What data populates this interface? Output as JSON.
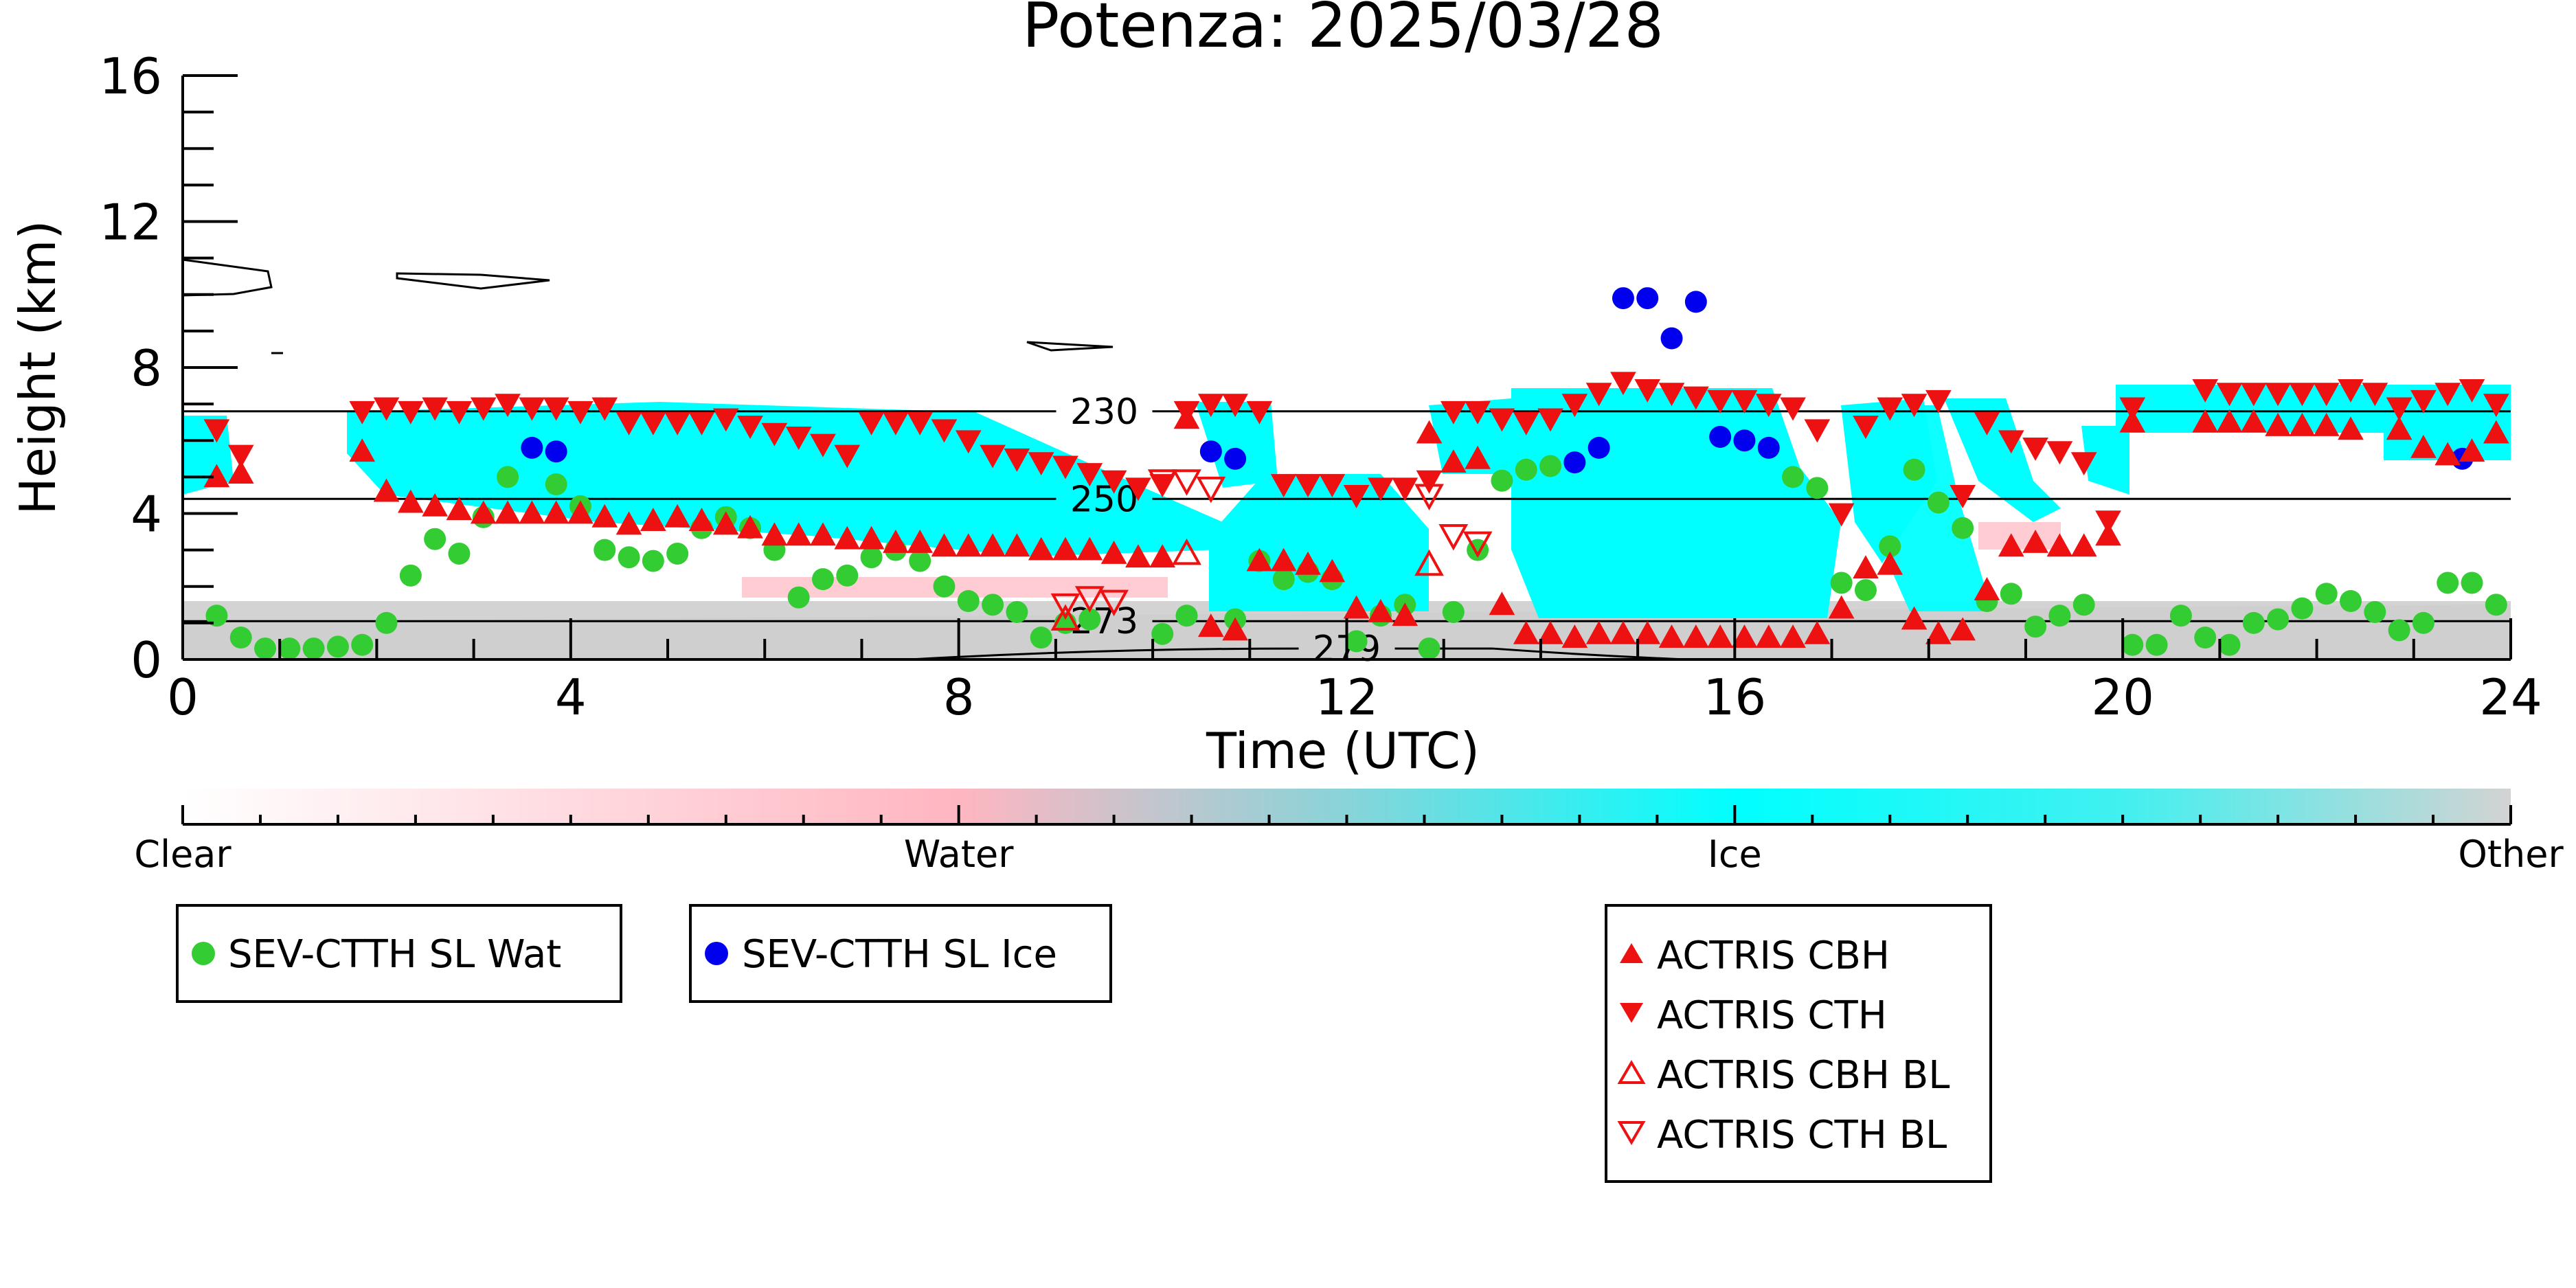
{
  "chart_data": {
    "type": "scatter",
    "title": "Potenza: 2025/03/28",
    "xlabel": "Time (UTC)",
    "ylabel": "Height (km)",
    "xlim": [
      0,
      24
    ],
    "ylim": [
      0,
      16
    ],
    "xticks": [
      0,
      4,
      8,
      12,
      16,
      20,
      24
    ],
    "yticks": [
      0,
      4,
      8,
      12,
      16
    ],
    "xtick_labels": [
      "0",
      "4",
      "8",
      "12",
      "16",
      "20",
      "24"
    ],
    "ytick_labels": [
      "0",
      "4",
      "8",
      "12",
      "16"
    ],
    "grid": false,
    "colorbar": {
      "labels": [
        "Clear",
        "Water",
        "Ice",
        "Other"
      ],
      "colors": [
        "#ffffff",
        "#ffb6c1",
        "#00ffff",
        "#d3d3d3"
      ]
    },
    "contours": [
      {
        "label": "230",
        "height": 6.8,
        "label_x": 9.5
      },
      {
        "label": "250",
        "height": 4.4,
        "label_x": 9.5
      },
      {
        "label": "273",
        "height": 1.05,
        "label_x": 9.5
      },
      {
        "label": "279",
        "height": 0.3,
        "label_x": 12.0
      }
    ],
    "series": [
      {
        "name": "SEV-CTTH SL Wat",
        "color": "#33cc33",
        "marker": "circle",
        "x": [
          0.35,
          0.6,
          0.85,
          1.1,
          1.35,
          1.6,
          1.85,
          2.1,
          2.35,
          2.6,
          2.85,
          3.1,
          3.35,
          3.85,
          4.1,
          4.35,
          4.6,
          4.85,
          5.1,
          5.35,
          5.6,
          5.85,
          6.1,
          6.35,
          6.6,
          6.85,
          7.1,
          7.35,
          7.6,
          7.85,
          8.1,
          8.35,
          8.6,
          8.85,
          9.1,
          9.35,
          10.1,
          10.35,
          10.85,
          11.1,
          11.35,
          11.6,
          11.85,
          12.1,
          12.35,
          12.6,
          12.85,
          13.1,
          13.35,
          13.6,
          13.85,
          14.1,
          16.6,
          16.85,
          17.1,
          17.35,
          17.6,
          17.85,
          18.1,
          18.35,
          18.6,
          18.85,
          19.1,
          19.35,
          19.6,
          20.1,
          20.35,
          20.6,
          20.85,
          21.1,
          21.35,
          21.6,
          21.85,
          22.1,
          22.35,
          22.6,
          22.85,
          23.1,
          23.35,
          23.6,
          23.85
        ],
        "y": [
          1.2,
          0.6,
          0.3,
          0.3,
          0.3,
          0.35,
          0.4,
          1.0,
          2.3,
          3.3,
          2.9,
          3.9,
          5.0,
          4.8,
          4.2,
          3.0,
          2.8,
          2.7,
          2.9,
          3.6,
          3.9,
          3.6,
          3.0,
          1.7,
          2.2,
          2.3,
          2.8,
          3.0,
          2.7,
          2.0,
          1.6,
          1.5,
          1.3,
          0.6,
          1.0,
          1.1,
          0.7,
          1.2,
          1.1,
          2.7,
          2.2,
          2.4,
          2.2,
          0.5,
          1.2,
          1.5,
          0.3,
          1.3,
          3.0,
          4.9,
          5.2,
          5.3,
          5.0,
          4.7,
          2.1,
          1.9,
          3.1,
          5.2,
          4.3,
          3.6,
          1.6,
          1.8,
          0.9,
          1.2,
          1.5,
          0.4,
          0.4,
          1.2,
          0.6,
          0.4,
          1.0,
          1.1,
          1.4,
          1.8,
          1.6,
          1.3,
          0.8,
          1.0,
          2.1,
          2.1,
          1.5
        ]
      },
      {
        "name": "SEV-CTTH SL Ice",
        "color": "#0000ee",
        "marker": "circle",
        "x": [
          3.6,
          3.85,
          10.6,
          10.85,
          14.35,
          14.6,
          14.85,
          15.1,
          15.35,
          15.6,
          15.85,
          16.1,
          16.35,
          23.5
        ],
        "y": [
          5.8,
          5.7,
          5.7,
          5.5,
          5.4,
          5.8,
          9.9,
          9.9,
          8.8,
          9.8,
          6.1,
          6.0,
          5.8,
          5.5
        ]
      },
      {
        "name": "ACTRIS CBH",
        "color": "#ee1111",
        "marker": "triangle-up",
        "x": [
          0.35,
          0.6,
          1.85,
          2.1,
          2.35,
          2.6,
          2.85,
          3.1,
          3.35,
          3.6,
          3.85,
          4.1,
          4.35,
          4.6,
          4.85,
          5.1,
          5.35,
          5.6,
          5.85,
          6.1,
          6.35,
          6.6,
          6.85,
          7.1,
          7.35,
          7.6,
          7.85,
          8.1,
          8.35,
          8.6,
          8.85,
          9.1,
          9.35,
          9.6,
          9.85,
          10.1,
          10.35,
          10.6,
          10.85,
          11.1,
          11.35,
          11.6,
          11.85,
          12.1,
          12.35,
          12.6,
          12.85,
          13.1,
          13.35,
          13.6,
          13.85,
          14.1,
          14.35,
          14.6,
          14.85,
          15.1,
          15.35,
          15.6,
          15.85,
          16.1,
          16.35,
          16.6,
          16.85,
          17.1,
          17.35,
          17.6,
          17.85,
          18.1,
          18.35,
          18.6,
          18.85,
          19.1,
          19.35,
          19.6,
          19.85,
          20.1,
          20.85,
          21.1,
          21.35,
          21.6,
          21.85,
          22.1,
          22.35,
          22.85,
          23.1,
          23.35,
          23.6,
          23.85
        ],
        "y": [
          5.0,
          5.1,
          5.7,
          4.6,
          4.3,
          4.2,
          4.1,
          4.0,
          4.0,
          4.0,
          4.0,
          4.0,
          3.9,
          3.7,
          3.8,
          3.9,
          3.8,
          3.7,
          3.6,
          3.4,
          3.4,
          3.4,
          3.3,
          3.3,
          3.2,
          3.2,
          3.1,
          3.1,
          3.1,
          3.1,
          3.0,
          3.0,
          3.0,
          2.9,
          2.8,
          2.8,
          6.6,
          0.9,
          0.8,
          2.7,
          2.7,
          2.6,
          2.4,
          1.4,
          1.3,
          1.2,
          6.2,
          5.4,
          5.5,
          1.5,
          0.7,
          0.7,
          0.6,
          0.7,
          0.7,
          0.7,
          0.6,
          0.6,
          0.6,
          0.6,
          0.6,
          0.6,
          0.7,
          1.4,
          2.5,
          2.6,
          1.1,
          0.7,
          0.8,
          1.9,
          3.1,
          3.2,
          3.1,
          3.1,
          3.4,
          6.5,
          6.5,
          6.5,
          6.5,
          6.4,
          6.4,
          6.4,
          6.3,
          6.3,
          5.8,
          5.6,
          5.7,
          6.2
        ]
      },
      {
        "name": "ACTRIS CTH",
        "color": "#ee1111",
        "marker": "triangle-down",
        "x": [
          0.35,
          0.6,
          1.85,
          2.1,
          2.35,
          2.6,
          2.85,
          3.1,
          3.35,
          3.6,
          3.85,
          4.1,
          4.35,
          4.6,
          4.85,
          5.1,
          5.35,
          5.6,
          5.85,
          6.1,
          6.35,
          6.6,
          6.85,
          7.1,
          7.35,
          7.6,
          7.85,
          8.1,
          8.35,
          8.6,
          8.85,
          9.1,
          9.35,
          9.6,
          9.85,
          10.1,
          10.35,
          10.6,
          10.85,
          11.1,
          11.35,
          11.6,
          11.85,
          12.1,
          12.35,
          12.6,
          12.85,
          13.1,
          13.35,
          13.6,
          13.85,
          14.1,
          14.35,
          14.6,
          14.85,
          15.1,
          15.35,
          15.6,
          15.85,
          16.1,
          16.35,
          16.6,
          16.85,
          17.1,
          17.35,
          17.6,
          17.85,
          18.1,
          18.35,
          18.6,
          18.85,
          19.1,
          19.35,
          19.6,
          19.85,
          20.1,
          20.85,
          21.1,
          21.35,
          21.6,
          21.85,
          22.1,
          22.35,
          22.6,
          22.85,
          23.1,
          23.35,
          23.6,
          23.85
        ],
        "y": [
          6.3,
          5.6,
          6.8,
          6.9,
          6.8,
          6.9,
          6.8,
          6.9,
          7.0,
          6.9,
          6.9,
          6.8,
          6.9,
          6.5,
          6.5,
          6.5,
          6.5,
          6.6,
          6.4,
          6.2,
          6.1,
          5.9,
          5.6,
          6.5,
          6.5,
          6.5,
          6.3,
          6.0,
          5.6,
          5.5,
          5.4,
          5.3,
          5.1,
          4.9,
          4.7,
          4.8,
          6.8,
          7.0,
          7.0,
          6.8,
          4.8,
          4.8,
          4.8,
          4.5,
          4.7,
          4.7,
          4.9,
          6.8,
          6.8,
          6.6,
          6.5,
          6.6,
          7.0,
          7.3,
          7.6,
          7.4,
          7.3,
          7.2,
          7.1,
          7.1,
          7.0,
          6.9,
          6.3,
          4.0,
          6.4,
          6.9,
          7.0,
          7.1,
          4.5,
          6.5,
          6.0,
          5.8,
          5.7,
          5.4,
          3.8,
          6.9,
          7.4,
          7.3,
          7.3,
          7.3,
          7.3,
          7.3,
          7.4,
          7.3,
          6.9,
          7.1,
          7.3,
          7.4,
          7.0
        ]
      },
      {
        "name": "ACTRIS CBH BL",
        "color": "#ee1111",
        "marker": "triangle-up-open",
        "x": [
          9.1,
          10.35,
          12.85
        ],
        "y": [
          1.1,
          2.9,
          2.6
        ]
      },
      {
        "name": "ACTRIS CTH BL",
        "color": "#ee1111",
        "marker": "triangle-down-open",
        "x": [
          9.1,
          9.35,
          9.6,
          10.1,
          10.35,
          10.6,
          12.85,
          13.1,
          13.35
        ],
        "y": [
          1.5,
          1.7,
          1.6,
          4.9,
          4.9,
          4.7,
          4.5,
          3.4,
          3.2
        ]
      }
    ]
  }
}
